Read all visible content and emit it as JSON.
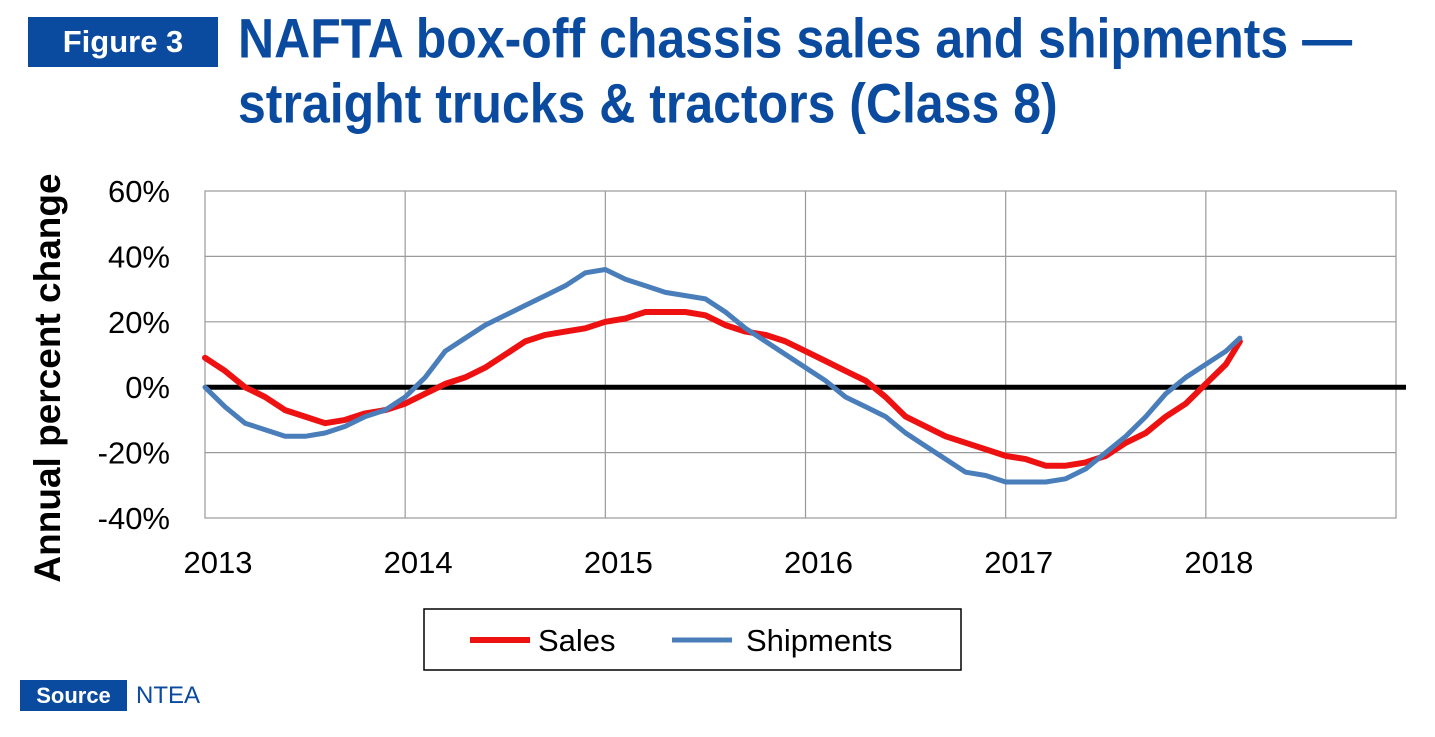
{
  "figure_label": "Figure 3",
  "title_line1": "NAFTA box-off chassis sales and shipments —",
  "title_line2": "straight trucks & tractors (Class 8)",
  "source_label": "Source",
  "source_value": "NTEA",
  "colors": {
    "sales": "#ee1111",
    "shipments": "#4a7ebb",
    "brand": "#0a4a9f"
  },
  "chart_data": {
    "type": "line",
    "title": "NAFTA box-off chassis sales and shipments — straight trucks & tractors (Class 8)",
    "ylabel": "Annual percent change",
    "xlabel": "",
    "xlim": [
      2013,
      2018.95
    ],
    "ylim": [
      -40,
      60
    ],
    "x_ticks": [
      2013,
      2014,
      2015,
      2016,
      2017,
      2018
    ],
    "x_tick_labels": [
      "2013",
      "2014",
      "2015",
      "2016",
      "2017",
      "2018"
    ],
    "y_ticks": [
      -40,
      -20,
      0,
      20,
      40,
      60
    ],
    "y_tick_labels": [
      "-40%",
      "-20%",
      "0%",
      "20%",
      "40%",
      "60%"
    ],
    "grid": true,
    "legend_position": "bottom-center",
    "series": [
      {
        "name": "Sales",
        "x": [
          2013.0,
          2013.1,
          2013.2,
          2013.3,
          2013.4,
          2013.5,
          2013.6,
          2013.7,
          2013.8,
          2013.9,
          2014.0,
          2014.1,
          2014.2,
          2014.3,
          2014.4,
          2014.5,
          2014.6,
          2014.7,
          2014.8,
          2014.9,
          2015.0,
          2015.1,
          2015.2,
          2015.3,
          2015.4,
          2015.5,
          2015.6,
          2015.7,
          2015.8,
          2015.9,
          2016.0,
          2016.1,
          2016.2,
          2016.3,
          2016.4,
          2016.5,
          2016.6,
          2016.7,
          2016.8,
          2016.9,
          2017.0,
          2017.1,
          2017.2,
          2017.3,
          2017.4,
          2017.5,
          2017.6,
          2017.7,
          2017.8,
          2017.9,
          2018.0,
          2018.1,
          2018.17
        ],
        "values": [
          9,
          5,
          0,
          -3,
          -7,
          -9,
          -11,
          -10,
          -8,
          -7,
          -5,
          -2,
          1,
          3,
          6,
          10,
          14,
          16,
          17,
          18,
          20,
          21,
          23,
          23,
          23,
          22,
          19,
          17,
          16,
          14,
          11,
          8,
          5,
          2,
          -3,
          -9,
          -12,
          -15,
          -17,
          -19,
          -21,
          -22,
          -24,
          -24,
          -23,
          -21,
          -17,
          -14,
          -9,
          -5,
          1,
          7,
          14
        ]
      },
      {
        "name": "Shipments",
        "x": [
          2013.0,
          2013.1,
          2013.2,
          2013.3,
          2013.4,
          2013.5,
          2013.6,
          2013.7,
          2013.8,
          2013.9,
          2014.0,
          2014.1,
          2014.2,
          2014.3,
          2014.4,
          2014.5,
          2014.6,
          2014.7,
          2014.8,
          2014.9,
          2015.0,
          2015.1,
          2015.2,
          2015.3,
          2015.4,
          2015.5,
          2015.6,
          2015.7,
          2015.8,
          2015.9,
          2016.0,
          2016.1,
          2016.2,
          2016.3,
          2016.4,
          2016.5,
          2016.6,
          2016.7,
          2016.8,
          2016.9,
          2017.0,
          2017.1,
          2017.2,
          2017.3,
          2017.4,
          2017.5,
          2017.6,
          2017.7,
          2017.8,
          2017.9,
          2018.0,
          2018.1,
          2018.17
        ],
        "values": [
          0,
          -6,
          -11,
          -13,
          -15,
          -15,
          -14,
          -12,
          -9,
          -7,
          -3,
          3,
          11,
          15,
          19,
          22,
          25,
          28,
          31,
          35,
          36,
          33,
          31,
          29,
          28,
          27,
          23,
          18,
          14,
          10,
          6,
          2,
          -3,
          -6,
          -9,
          -14,
          -18,
          -22,
          -26,
          -27,
          -29,
          -29,
          -29,
          -28,
          -25,
          -20,
          -15,
          -9,
          -2,
          3,
          7,
          11,
          15
        ]
      }
    ]
  }
}
